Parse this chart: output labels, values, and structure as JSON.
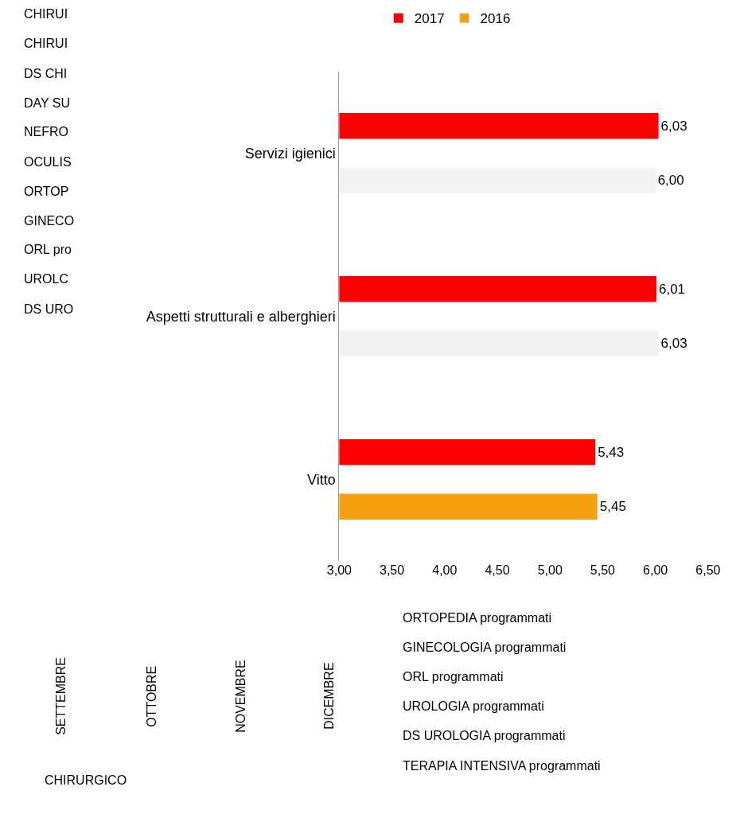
{
  "chart_data": [
    {
      "type": "bar",
      "orientation": "horizontal",
      "categories": [
        "Servizi igienici",
        "Aspetti strutturali e alberghieri",
        "Vitto"
      ],
      "series": [
        {
          "name": "2017",
          "color": "#ff0000",
          "values": [
            6.03,
            6.01,
            5.43
          ],
          "value_labels": [
            "6,03",
            "6,01",
            "5,43"
          ]
        },
        {
          "name": "2016",
          "color": "#f5a10f",
          "colors": [
            "#f2f2f2",
            "#f2f2f2",
            "#f5a10f"
          ],
          "values": [
            6.0,
            6.03,
            5.45
          ],
          "value_labels": [
            "6,00",
            "6,03",
            "5,45"
          ]
        }
      ],
      "xlim": [
        3.0,
        6.5
      ],
      "xticks": [
        {
          "value": 3.0,
          "label": "3,00"
        },
        {
          "value": 3.5,
          "label": "3,50"
        },
        {
          "value": 4.0,
          "label": "4,00"
        },
        {
          "value": 4.5,
          "label": "4,50"
        },
        {
          "value": 5.0,
          "label": "5,00"
        },
        {
          "value": 5.5,
          "label": "5,50"
        },
        {
          "value": 6.0,
          "label": "6,00"
        },
        {
          "value": 6.5,
          "label": "6,50"
        }
      ],
      "legend": "top"
    },
    {
      "type": "other",
      "annotations": [
        "CHIRUI",
        "CHIRUI",
        "DS CHI",
        "DAY SU",
        "NEFRO",
        "OCULIS",
        "ORTOP",
        "GINECO",
        "ORL pro",
        "UROLC",
        "DS URO",
        "ORTOPEDIA programmati",
        "GINECOLOGIA programmati",
        "ORL programmati",
        "UROLOGIA programmati",
        "DS UROLOGIA programmati",
        "TERAPIA INTENSIVA programmati",
        "SETTEMBRE",
        "OTTOBRE",
        "NOVEMBRE",
        "DICEMBRE",
        "CHIRURGICO"
      ]
    }
  ]
}
